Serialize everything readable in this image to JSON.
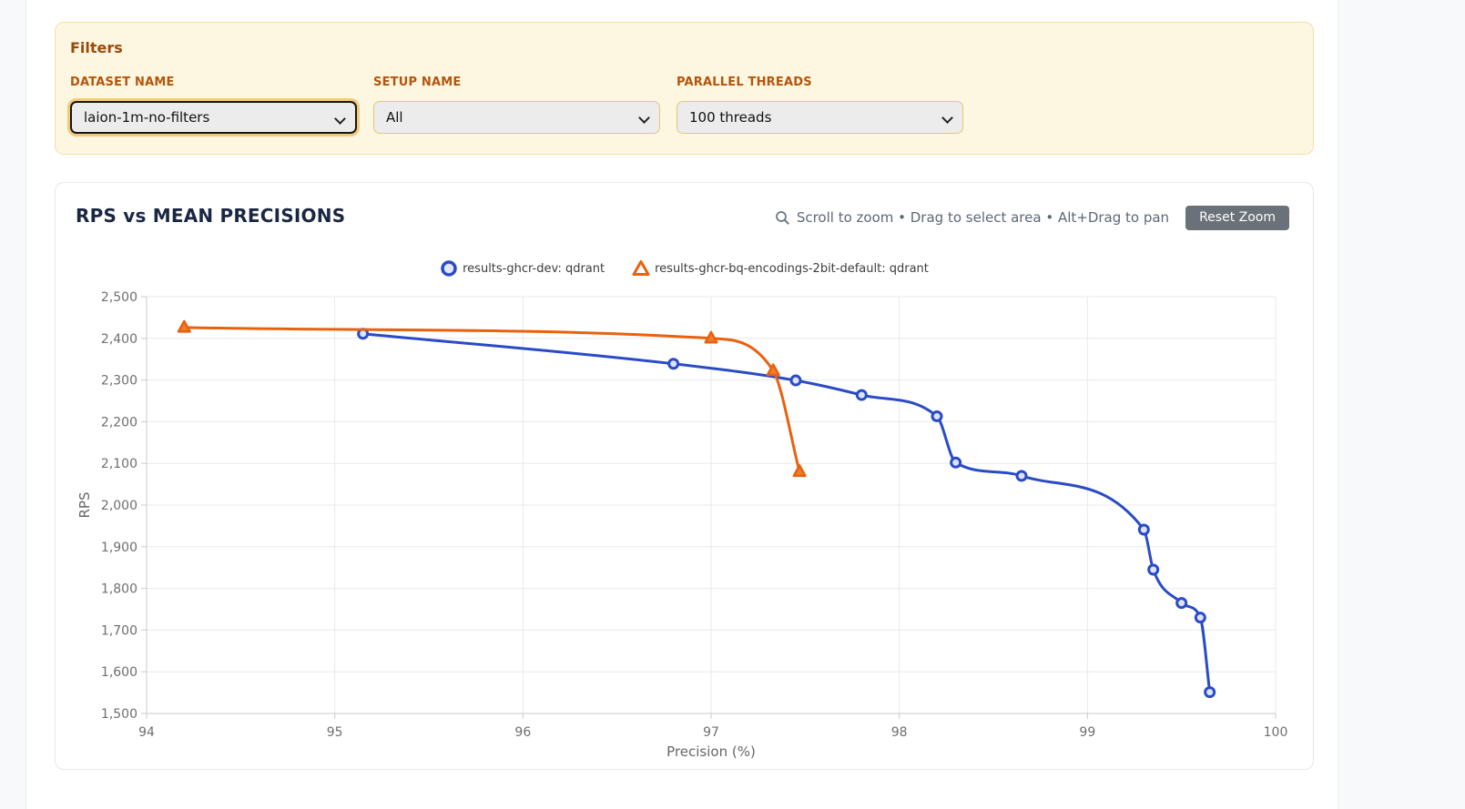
{
  "filters": {
    "heading": "Filters",
    "fields": [
      {
        "label": "DATASET NAME",
        "value": "laion-1m-no-filters",
        "focused": true
      },
      {
        "label": "SETUP NAME",
        "value": "All",
        "focused": false
      },
      {
        "label": "PARALLEL THREADS",
        "value": "100 threads",
        "focused": false
      }
    ]
  },
  "chart_panel": {
    "title": "RPS vs MEAN PRECISIONS",
    "zoom_hint": "Scroll to zoom • Drag to select area • Alt+Drag to pan",
    "reset_button_label": "Reset Zoom"
  },
  "chart_data": {
    "type": "line",
    "title": "RPS vs MEAN PRECISIONS",
    "xlabel": "Precision (%)",
    "ylabel": "RPS",
    "xlim": [
      94,
      100
    ],
    "ylim": [
      1500,
      2500
    ],
    "x_ticks": [
      94,
      95,
      96,
      97,
      98,
      99,
      100
    ],
    "y_tick_step": 100,
    "grid": true,
    "legend_position": "top",
    "curve": "monotone",
    "series": [
      {
        "name": "results-ghcr-dev: qdrant",
        "marker": "circle",
        "color": "#2a4bc6",
        "marker_fill": "#dde4f7",
        "points": [
          [
            95.15,
            2411
          ],
          [
            96.8,
            2339
          ],
          [
            97.45,
            2299
          ],
          [
            97.8,
            2264
          ],
          [
            98.2,
            2213
          ],
          [
            98.3,
            2102
          ],
          [
            98.65,
            2070
          ],
          [
            99.3,
            1941
          ],
          [
            99.35,
            1845
          ],
          [
            99.5,
            1765
          ],
          [
            99.6,
            1730
          ],
          [
            99.65,
            1551
          ]
        ]
      },
      {
        "name": "results-ghcr-bq-encodings-2bit-default: qdrant",
        "marker": "triangle",
        "color": "#e8610f",
        "marker_fill": "#ef7d2b",
        "points": [
          [
            94.2,
            2426
          ],
          [
            97.0,
            2400
          ],
          [
            97.33,
            2322
          ],
          [
            97.47,
            2080
          ]
        ]
      }
    ],
    "style": {
      "grid_color": "#e9e9e9",
      "axis_color": "#cbcbcb",
      "tick_label_color": "#6e6e6e",
      "axis_title_color": "#666666"
    }
  }
}
